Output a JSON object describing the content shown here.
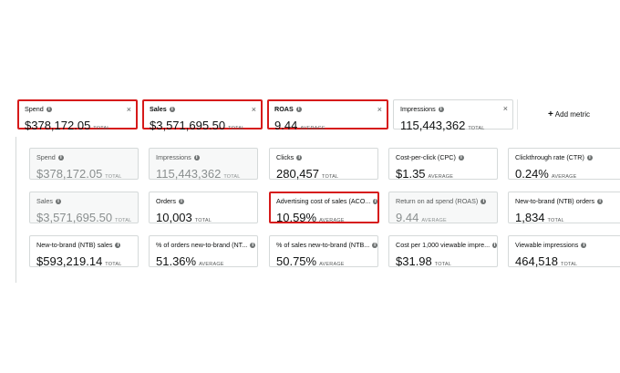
{
  "selected": [
    {
      "name": "Spend",
      "value": "$378,172.05",
      "unit": "TOTAL"
    },
    {
      "name": "Sales",
      "value": "$3,571,695.50",
      "unit": "TOTAL"
    },
    {
      "name": "ROAS",
      "value": "9.44",
      "unit": "AVERAGE"
    },
    {
      "name": "Impressions",
      "value": "115,443,362",
      "unit": "TOTAL"
    }
  ],
  "add_metric": {
    "icon": "+",
    "label": "Add metric"
  },
  "close_glyph": "×",
  "info_glyph": "i",
  "grid": [
    {
      "name": "Spend",
      "value": "$378,172.05",
      "unit": "TOTAL"
    },
    {
      "name": "Impressions",
      "value": "115,443,362",
      "unit": "TOTAL"
    },
    {
      "name": "Clicks",
      "value": "280,457",
      "unit": "TOTAL"
    },
    {
      "name": "Cost-per-click (CPC)",
      "value": "$1.35",
      "unit": "AVERAGE"
    },
    {
      "name": "Clickthrough rate (CTR)",
      "value": "0.24%",
      "unit": "AVERAGE"
    },
    {
      "name": "Sales",
      "value": "$3,571,695.50",
      "unit": "TOTAL"
    },
    {
      "name": "Orders",
      "value": "10,003",
      "unit": "TOTAL"
    },
    {
      "name": "Advertising cost of sales (ACO...",
      "value": "10.59%",
      "unit": "AVERAGE"
    },
    {
      "name": "Return on ad spend (ROAS)",
      "value": "9.44",
      "unit": "AVERAGE"
    },
    {
      "name": "New-to-brand (NTB) orders",
      "value": "1,834",
      "unit": "TOTAL"
    },
    {
      "name": "New-to-brand (NTB) sales",
      "value": "$593,219.14",
      "unit": "TOTAL"
    },
    {
      "name": "% of orders new-to-brand (NT...",
      "value": "51.36%",
      "unit": "AVERAGE"
    },
    {
      "name": "% of sales new-to-brand (NTB...",
      "value": "50.75%",
      "unit": "AVERAGE"
    },
    {
      "name": "Cost per 1,000 viewable impre...",
      "value": "$31.98",
      "unit": "TOTAL"
    },
    {
      "name": "Viewable impressions",
      "value": "464,518",
      "unit": "TOTAL"
    }
  ]
}
